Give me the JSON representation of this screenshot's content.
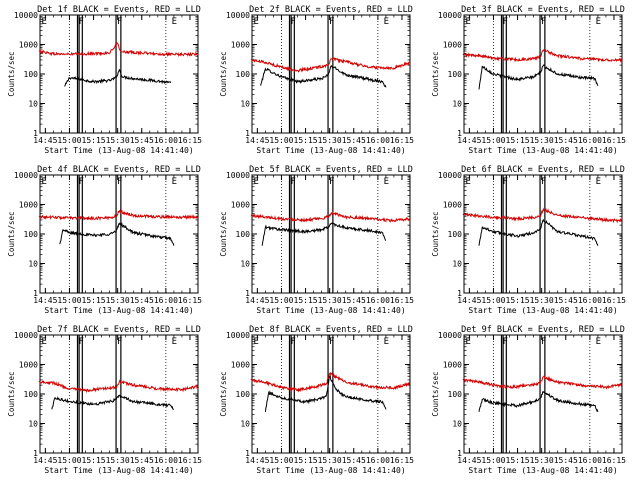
{
  "chart_data": [
    {
      "type": "line",
      "title": "Det 1f BLACK = Events, RED = LLD",
      "xlabel": "Start Time (13-Aug-08 14:41:40)",
      "ylabel": "Counts/sec",
      "x_tick_labels": [
        "14:45",
        "15:00",
        "15:15",
        "15:30",
        "15:45",
        "16:00",
        "16:15"
      ],
      "x_range": [
        "14:41:40",
        "16:20:00"
      ],
      "y_scale": "log",
      "ylim": [
        1,
        10000
      ],
      "y_tick_labels": [
        "1",
        "10",
        "100",
        "1000"
      ],
      "series": [
        {
          "color": "#000000",
          "x": [
            "14:57",
            "15:00",
            "15:15",
            "15:25",
            "15:29",
            "15:31",
            "15:33",
            "15:40",
            "15:55",
            "16:03"
          ],
          "y": [
            38,
            75,
            55,
            60,
            75,
            140,
            80,
            70,
            58,
            50
          ]
        },
        {
          "color": "#d40000",
          "x": [
            "14:41",
            "14:50",
            "15:00",
            "15:15",
            "15:25",
            "15:30",
            "15:31",
            "15:33",
            "15:45",
            "16:00",
            "16:15",
            "16:20"
          ],
          "y": [
            600,
            480,
            470,
            490,
            520,
            1100,
            700,
            560,
            520,
            460,
            460,
            480
          ]
        }
      ],
      "markers": [
        {
          "label": "E",
          "x": "14:42"
        },
        {
          "label": "F",
          "x": "15:05"
        },
        {
          "label": "F",
          "x": "15:29"
        },
        {
          "label": "E",
          "x": "16:03"
        }
      ],
      "dotted_x": [
        "15:00",
        "16:00"
      ],
      "solid_x": [
        "15:05",
        "15:06",
        "15:08",
        "15:29",
        "15:32"
      ]
    },
    {
      "type": "line",
      "title": "Det 2f BLACK = Events, RED = LLD",
      "xlabel": "Start Time (13-Aug-08 14:41:40)",
      "ylabel": "Counts/sec",
      "x_tick_labels": [
        "14:45",
        "15:00",
        "15:15",
        "15:30",
        "15:45",
        "16:00",
        "16:15"
      ],
      "x_range": [
        "14:41:40",
        "16:20:00"
      ],
      "y_scale": "log",
      "ylim": [
        1,
        10000
      ],
      "y_tick_labels": [
        "1",
        "10",
        "100",
        "1000"
      ],
      "series": [
        {
          "color": "#000000",
          "x": [
            "14:47",
            "14:50",
            "15:00",
            "15:10",
            "15:25",
            "15:29",
            "15:31",
            "15:40",
            "15:55",
            "16:03",
            "16:05"
          ],
          "y": [
            40,
            150,
            80,
            55,
            70,
            90,
            190,
            95,
            65,
            55,
            35
          ]
        },
        {
          "color": "#d40000",
          "x": [
            "14:41",
            "14:50",
            "15:00",
            "15:10",
            "15:20",
            "15:29",
            "15:31",
            "15:40",
            "15:55",
            "16:10",
            "16:20"
          ],
          "y": [
            300,
            250,
            170,
            130,
            160,
            200,
            330,
            260,
            170,
            160,
            240
          ]
        }
      ],
      "markers": [
        {
          "label": "E",
          "x": "14:42"
        },
        {
          "label": "F",
          "x": "15:05"
        },
        {
          "label": "F",
          "x": "15:29"
        },
        {
          "label": "E",
          "x": "16:03"
        }
      ],
      "dotted_x": [
        "15:00",
        "16:00"
      ],
      "solid_x": [
        "15:05",
        "15:06",
        "15:08",
        "15:29",
        "15:32"
      ]
    },
    {
      "type": "line",
      "title": "Det 3f BLACK = Events, RED = LLD",
      "xlabel": "Start Time (13-Aug-08 14:41:40)",
      "ylabel": "Counts/sec",
      "x_tick_labels": [
        "14:45",
        "15:00",
        "15:15",
        "15:30",
        "15:45",
        "16:00",
        "16:15"
      ],
      "x_range": [
        "14:41:40",
        "16:20:00"
      ],
      "y_scale": "log",
      "ylim": [
        1,
        10000
      ],
      "y_tick_labels": [
        "1",
        "10",
        "100",
        "1000"
      ],
      "series": [
        {
          "color": "#000000",
          "x": [
            "14:51",
            "14:53",
            "15:00",
            "15:15",
            "15:25",
            "15:29",
            "15:31",
            "15:40",
            "15:55",
            "16:03",
            "16:05"
          ],
          "y": [
            30,
            180,
            100,
            65,
            80,
            110,
            190,
            100,
            75,
            70,
            40
          ]
        },
        {
          "color": "#d40000",
          "x": [
            "14:41",
            "14:50",
            "15:00",
            "15:15",
            "15:25",
            "15:29",
            "15:31",
            "15:40",
            "15:55",
            "16:10",
            "16:20"
          ],
          "y": [
            450,
            420,
            350,
            300,
            330,
            380,
            650,
            420,
            330,
            300,
            300
          ]
        }
      ],
      "markers": [
        {
          "label": "E",
          "x": "14:42"
        },
        {
          "label": "F",
          "x": "15:05"
        },
        {
          "label": "F",
          "x": "15:29"
        },
        {
          "label": "E",
          "x": "16:03"
        }
      ],
      "dotted_x": [
        "15:00",
        "16:00"
      ],
      "solid_x": [
        "15:05",
        "15:06",
        "15:08",
        "15:29",
        "15:32"
      ]
    },
    {
      "type": "line",
      "title": "Det 4f BLACK = Events, RED = LLD",
      "xlabel": "Start Time (13-Aug-08 14:41:40)",
      "ylabel": "Counts/sec",
      "x_tick_labels": [
        "14:45",
        "15:00",
        "15:15",
        "15:30",
        "15:45",
        "16:00",
        "16:15"
      ],
      "x_range": [
        "14:41:40",
        "16:20:00"
      ],
      "y_scale": "log",
      "ylim": [
        1,
        10000
      ],
      "y_tick_labels": [
        "1",
        "10",
        "100",
        "1000"
      ],
      "series": [
        {
          "color": "#000000",
          "x": [
            "14:54",
            "14:56",
            "15:00",
            "15:15",
            "15:25",
            "15:29",
            "15:31",
            "15:40",
            "15:55",
            "16:03",
            "16:05"
          ],
          "y": [
            45,
            140,
            110,
            90,
            100,
            120,
            230,
            110,
            80,
            70,
            40
          ]
        },
        {
          "color": "#d40000",
          "x": [
            "14:41",
            "14:50",
            "15:00",
            "15:15",
            "15:25",
            "15:29",
            "15:31",
            "15:40",
            "15:55",
            "16:10",
            "16:20"
          ],
          "y": [
            380,
            370,
            350,
            340,
            360,
            400,
            600,
            420,
            380,
            370,
            380
          ]
        }
      ],
      "markers": [
        {
          "label": "E",
          "x": "14:42"
        },
        {
          "label": "F",
          "x": "15:05"
        },
        {
          "label": "F",
          "x": "15:29"
        },
        {
          "label": "E",
          "x": "16:03"
        }
      ],
      "dotted_x": [
        "15:00",
        "16:00"
      ],
      "solid_x": [
        "15:05",
        "15:06",
        "15:08",
        "15:29",
        "15:32"
      ]
    },
    {
      "type": "line",
      "title": "Det 5f BLACK = Events, RED = LLD",
      "xlabel": "Start Time (13-Aug-08 14:41:40)",
      "ylabel": "Counts/sec",
      "x_tick_labels": [
        "14:45",
        "15:00",
        "15:15",
        "15:30",
        "15:45",
        "16:00",
        "16:15"
      ],
      "x_range": [
        "14:41:40",
        "16:20:00"
      ],
      "y_scale": "log",
      "ylim": [
        1,
        10000
      ],
      "y_tick_labels": [
        "1",
        "10",
        "100",
        "1000"
      ],
      "series": [
        {
          "color": "#000000",
          "x": [
            "14:48",
            "14:50",
            "15:00",
            "15:15",
            "15:25",
            "15:29",
            "15:31",
            "15:40",
            "15:55",
            "16:03",
            "16:05"
          ],
          "y": [
            40,
            170,
            140,
            120,
            140,
            170,
            230,
            160,
            130,
            110,
            60
          ]
        },
        {
          "color": "#d40000",
          "x": [
            "14:41",
            "14:50",
            "15:00",
            "15:15",
            "15:25",
            "15:29",
            "15:31",
            "15:40",
            "15:55",
            "16:10",
            "16:20"
          ],
          "y": [
            420,
            380,
            330,
            300,
            330,
            380,
            520,
            380,
            330,
            280,
            330
          ]
        }
      ],
      "markers": [
        {
          "label": "E",
          "x": "14:42"
        },
        {
          "label": "F",
          "x": "15:05"
        },
        {
          "label": "F",
          "x": "15:29"
        },
        {
          "label": "E",
          "x": "16:03"
        }
      ],
      "dotted_x": [
        "15:00",
        "16:00"
      ],
      "solid_x": [
        "15:05",
        "15:06",
        "15:08",
        "15:29",
        "15:32"
      ]
    },
    {
      "type": "line",
      "title": "Det 6f BLACK = Events, RED = LLD",
      "xlabel": "Start Time (13-Aug-08 14:41:40)",
      "ylabel": "Counts/sec",
      "x_tick_labels": [
        "14:45",
        "15:00",
        "15:15",
        "15:30",
        "15:45",
        "16:00",
        "16:15"
      ],
      "x_range": [
        "14:41:40",
        "16:20:00"
      ],
      "y_scale": "log",
      "ylim": [
        1,
        10000
      ],
      "y_tick_labels": [
        "1",
        "10",
        "100",
        "1000"
      ],
      "series": [
        {
          "color": "#000000",
          "x": [
            "14:51",
            "14:53",
            "15:00",
            "15:15",
            "15:25",
            "15:29",
            "15:31",
            "15:40",
            "15:55",
            "16:03",
            "16:05"
          ],
          "y": [
            40,
            170,
            120,
            85,
            110,
            140,
            300,
            120,
            85,
            70,
            40
          ]
        },
        {
          "color": "#d40000",
          "x": [
            "14:41",
            "14:50",
            "15:00",
            "15:15",
            "15:25",
            "15:29",
            "15:31",
            "15:40",
            "15:55",
            "16:10",
            "16:20"
          ],
          "y": [
            450,
            420,
            370,
            330,
            360,
            400,
            700,
            430,
            360,
            300,
            280
          ]
        }
      ],
      "markers": [
        {
          "label": "E",
          "x": "14:42"
        },
        {
          "label": "F",
          "x": "15:05"
        },
        {
          "label": "F",
          "x": "15:29"
        },
        {
          "label": "E",
          "x": "16:03"
        }
      ],
      "dotted_x": [
        "15:00",
        "16:00"
      ],
      "solid_x": [
        "15:05",
        "15:06",
        "15:08",
        "15:29",
        "15:32"
      ]
    },
    {
      "type": "line",
      "title": "Det 7f BLACK = Events, RED = LLD",
      "xlabel": "Start Time (13-Aug-08 14:41:40)",
      "ylabel": "Counts/sec",
      "x_tick_labels": [
        "14:45",
        "15:00",
        "15:15",
        "15:30",
        "15:45",
        "16:00",
        "16:15"
      ],
      "x_range": [
        "14:41:40",
        "16:20:00"
      ],
      "y_scale": "log",
      "ylim": [
        1,
        10000
      ],
      "y_tick_labels": [
        "1",
        "10",
        "100",
        "1000"
      ],
      "series": [
        {
          "color": "#000000",
          "x": [
            "14:49",
            "14:51",
            "15:00",
            "15:15",
            "15:25",
            "15:29",
            "15:31",
            "15:40",
            "15:55",
            "16:03",
            "16:05"
          ],
          "y": [
            30,
            75,
            55,
            45,
            55,
            65,
            90,
            55,
            45,
            40,
            30
          ]
        },
        {
          "color": "#d40000",
          "x": [
            "14:41",
            "14:50",
            "15:00",
            "15:10",
            "15:20",
            "15:29",
            "15:31",
            "15:40",
            "15:55",
            "16:10",
            "16:20"
          ],
          "y": [
            260,
            240,
            150,
            130,
            150,
            170,
            260,
            200,
            150,
            140,
            180
          ]
        }
      ],
      "markers": [
        {
          "label": "E",
          "x": "14:42"
        },
        {
          "label": "F",
          "x": "15:05"
        },
        {
          "label": "F",
          "x": "15:29"
        },
        {
          "label": "E",
          "x": "16:03"
        }
      ],
      "dotted_x": [
        "15:00",
        "16:00"
      ],
      "solid_x": [
        "15:05",
        "15:06",
        "15:08",
        "15:29",
        "15:32"
      ]
    },
    {
      "type": "line",
      "title": "Det 8f BLACK = Events, RED = LLD",
      "xlabel": "Start Time (13-Aug-08 14:41:40)",
      "ylabel": "Counts/sec",
      "x_tick_labels": [
        "14:45",
        "15:00",
        "15:15",
        "15:30",
        "15:45",
        "16:00",
        "16:15"
      ],
      "x_range": [
        "14:41:40",
        "16:20:00"
      ],
      "y_scale": "log",
      "ylim": [
        1,
        10000
      ],
      "y_tick_labels": [
        "1",
        "10",
        "100",
        "1000"
      ],
      "series": [
        {
          "color": "#000000",
          "x": [
            "14:50",
            "14:52",
            "15:00",
            "15:15",
            "15:25",
            "15:28",
            "15:30",
            "15:34",
            "15:40",
            "15:55",
            "16:03",
            "16:05"
          ],
          "y": [
            25,
            110,
            75,
            55,
            70,
            90,
            400,
            140,
            80,
            60,
            55,
            30
          ]
        },
        {
          "color": "#d40000",
          "x": [
            "14:41",
            "14:50",
            "15:00",
            "15:10",
            "15:20",
            "15:28",
            "15:30",
            "15:40",
            "15:55",
            "16:10",
            "16:20"
          ],
          "y": [
            300,
            250,
            170,
            140,
            170,
            220,
            500,
            250,
            180,
            160,
            230
          ]
        }
      ],
      "markers": [
        {
          "label": "E",
          "x": "14:42"
        },
        {
          "label": "F",
          "x": "15:05"
        },
        {
          "label": "F",
          "x": "15:29"
        },
        {
          "label": "E",
          "x": "16:03"
        }
      ],
      "dotted_x": [
        "15:00",
        "16:00"
      ],
      "solid_x": [
        "15:05",
        "15:06",
        "15:08",
        "15:29",
        "15:32"
      ]
    },
    {
      "type": "line",
      "title": "Det 9f BLACK = Events, RED = LLD",
      "xlabel": "Start Time (13-Aug-08 14:41:40)",
      "ylabel": "Counts/sec",
      "x_tick_labels": [
        "14:45",
        "15:00",
        "15:15",
        "15:30",
        "15:45",
        "16:00",
        "16:15"
      ],
      "x_range": [
        "14:41:40",
        "16:20:00"
      ],
      "y_scale": "log",
      "ylim": [
        1,
        10000
      ],
      "y_tick_labels": [
        "1",
        "10",
        "100",
        "1000"
      ],
      "series": [
        {
          "color": "#000000",
          "x": [
            "14:51",
            "14:53",
            "15:00",
            "15:15",
            "15:25",
            "15:29",
            "15:31",
            "15:40",
            "15:55",
            "16:03",
            "16:05"
          ],
          "y": [
            25,
            65,
            50,
            40,
            55,
            70,
            120,
            60,
            45,
            40,
            25
          ]
        },
        {
          "color": "#d40000",
          "x": [
            "14:41",
            "14:50",
            "15:00",
            "15:10",
            "15:20",
            "15:29",
            "15:31",
            "15:40",
            "15:55",
            "16:10",
            "16:20"
          ],
          "y": [
            300,
            260,
            200,
            170,
            190,
            230,
            380,
            250,
            200,
            170,
            210
          ]
        }
      ],
      "markers": [
        {
          "label": "E",
          "x": "14:42"
        },
        {
          "label": "F",
          "x": "15:05"
        },
        {
          "label": "F",
          "x": "15:29"
        },
        {
          "label": "E",
          "x": "16:03"
        }
      ],
      "dotted_x": [
        "15:00",
        "16:00"
      ],
      "solid_x": [
        "15:05",
        "15:06",
        "15:08",
        "15:29",
        "15:32"
      ]
    }
  ]
}
